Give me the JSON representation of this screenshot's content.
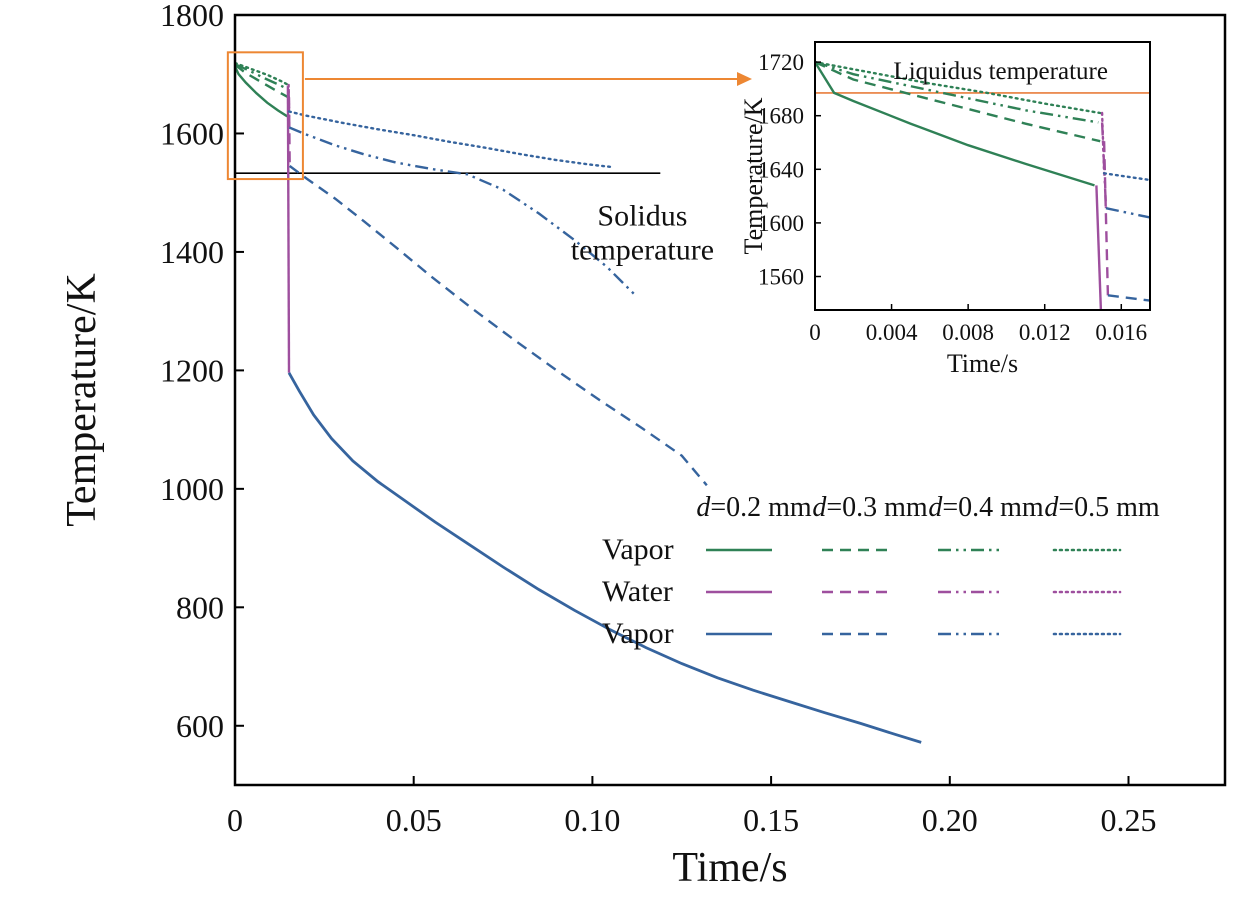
{
  "colors": {
    "green": "#2f8156",
    "purple": "#9e4f9e",
    "blue": "#36649e",
    "orange": "#ed8733",
    "liquidus": "#e87d3c",
    "axis": "#000000"
  },
  "legend": {
    "columns": [
      "d=0.2 mm",
      "d=0.3 mm",
      "d=0.4 mm",
      "d=0.5 mm"
    ],
    "rows": [
      {
        "label": "Vapor",
        "color": "green"
      },
      {
        "label": "Water",
        "color": "purple"
      },
      {
        "label": "Vapor",
        "color": "blue"
      }
    ],
    "styles": [
      "solid",
      "dash",
      "dashdotdot",
      "dot"
    ]
  },
  "chart_data": [
    {
      "id": "main",
      "type": "line",
      "title": "",
      "xlabel": "Time/s",
      "ylabel": "Temperature/K",
      "xlim": [
        0,
        0.277
      ],
      "ylim": [
        500,
        1800
      ],
      "xticks": [
        "0",
        "0.05",
        "0.10",
        "0.15",
        "0.20",
        "0.25"
      ],
      "xtick_values": [
        0,
        0.05,
        0.1,
        0.15,
        0.2,
        0.25
      ],
      "yticks": [
        "600",
        "800",
        "1000",
        "1200",
        "1400",
        "1600",
        "1800"
      ],
      "ytick_values": [
        600,
        800,
        1000,
        1200,
        1400,
        1600,
        1800
      ],
      "reference_lines": [
        {
          "label": "Solidus temperature",
          "value": 1533,
          "x_range": [
            0,
            0.119
          ],
          "color": "#000000"
        }
      ],
      "annotations": [
        {
          "text": "Solidus",
          "x": 0.114,
          "y": 1462
        },
        {
          "text": "temperature",
          "x": 0.114,
          "y": 1405
        }
      ],
      "zoom_region": {
        "x_range": [
          -0.002,
          0.019
        ],
        "y_range": [
          1523,
          1737
        ],
        "arrow_y": 1692
      },
      "series": [
        {
          "name": "vapor-initial-d0.2",
          "color": "green",
          "dash": "solid",
          "points": [
            [
              0,
              1713
            ],
            [
              0.001,
              1700
            ],
            [
              0.003,
              1686
            ],
            [
              0.006,
              1668
            ],
            [
              0.009,
              1652
            ],
            [
              0.012,
              1639
            ],
            [
              0.0146,
              1629
            ]
          ]
        },
        {
          "name": "vapor-initial-d0.3",
          "color": "green",
          "dash": "dash",
          "points": [
            [
              0,
              1716
            ],
            [
              0.003,
              1702
            ],
            [
              0.007,
              1688
            ],
            [
              0.011,
              1674
            ],
            [
              0.0149,
              1661
            ]
          ]
        },
        {
          "name": "vapor-initial-d0.4",
          "color": "green",
          "dash": "dashdotdot",
          "points": [
            [
              0,
              1717
            ],
            [
              0.004,
              1706
            ],
            [
              0.008,
              1694
            ],
            [
              0.012,
              1683
            ],
            [
              0.0148,
              1675
            ]
          ]
        },
        {
          "name": "vapor-initial-d0.5",
          "color": "green",
          "dash": "dot",
          "points": [
            [
              0,
              1719
            ],
            [
              0.004,
              1710
            ],
            [
              0.009,
              1699
            ],
            [
              0.013,
              1688
            ],
            [
              0.0149,
              1682
            ]
          ]
        },
        {
          "name": "water-d0.2",
          "color": "purple",
          "dash": "solid",
          "points": [
            [
              0.0148,
              1680
            ],
            [
              0.0151,
              1196
            ]
          ]
        },
        {
          "name": "water-d0.3",
          "color": "purple",
          "dash": "dash",
          "points": [
            [
              0.0151,
              1661
            ],
            [
              0.0153,
              1545
            ]
          ]
        },
        {
          "name": "water-d0.4",
          "color": "purple",
          "dash": "dashdotdot",
          "points": [
            [
              0.015,
              1675
            ],
            [
              0.0152,
              1610
            ]
          ]
        },
        {
          "name": "water-d0.5",
          "color": "purple",
          "dash": "dot",
          "points": [
            [
              0.015,
              1682
            ],
            [
              0.0151,
              1637
            ]
          ]
        },
        {
          "name": "vapor-d0.2",
          "color": "blue",
          "dash": "solid",
          "width": 2.8,
          "points": [
            [
              0.0151,
              1196
            ],
            [
              0.018,
              1165
            ],
            [
              0.022,
              1125
            ],
            [
              0.027,
              1085
            ],
            [
              0.033,
              1047
            ],
            [
              0.04,
              1012
            ],
            [
              0.048,
              978
            ],
            [
              0.056,
              944
            ],
            [
              0.065,
              908
            ],
            [
              0.075,
              868
            ],
            [
              0.085,
              830
            ],
            [
              0.095,
              795
            ],
            [
              0.105,
              762
            ],
            [
              0.115,
              732
            ],
            [
              0.125,
              705
            ],
            [
              0.135,
              681
            ],
            [
              0.145,
              660
            ],
            [
              0.155,
              641
            ],
            [
              0.165,
              622
            ],
            [
              0.175,
              604
            ],
            [
              0.185,
              585
            ],
            [
              0.192,
              572
            ]
          ]
        },
        {
          "name": "vapor-d0.3",
          "color": "blue",
          "dash": "dash",
          "points": [
            [
              0.0153,
              1545
            ],
            [
              0.02,
              1524
            ],
            [
              0.028,
              1490
            ],
            [
              0.036,
              1452
            ],
            [
              0.045,
              1408
            ],
            [
              0.055,
              1358
            ],
            [
              0.066,
              1306
            ],
            [
              0.078,
              1252
            ],
            [
              0.09,
              1200
            ],
            [
              0.102,
              1150
            ],
            [
              0.114,
              1102
            ],
            [
              0.125,
              1056
            ],
            [
              0.132,
              1006
            ]
          ]
        },
        {
          "name": "vapor-d0.4",
          "color": "blue",
          "dash": "dashdotdot",
          "points": [
            [
              0.0152,
              1610
            ],
            [
              0.02,
              1598
            ],
            [
              0.028,
              1580
            ],
            [
              0.036,
              1565
            ],
            [
              0.045,
              1551
            ],
            [
              0.055,
              1540
            ],
            [
              0.065,
              1531
            ],
            [
              0.075,
              1505
            ],
            [
              0.085,
              1465
            ],
            [
              0.095,
              1420
            ],
            [
              0.104,
              1375
            ],
            [
              0.112,
              1327
            ]
          ]
        },
        {
          "name": "vapor-d0.5",
          "color": "blue",
          "dash": "dot",
          "points": [
            [
              0.0151,
              1637
            ],
            [
              0.02,
              1630
            ],
            [
              0.03,
              1618
            ],
            [
              0.04,
              1607
            ],
            [
              0.05,
              1597
            ],
            [
              0.06,
              1586
            ],
            [
              0.07,
              1576
            ],
            [
              0.08,
              1565
            ],
            [
              0.09,
              1555
            ],
            [
              0.1,
              1547
            ],
            [
              0.106,
              1543
            ]
          ]
        }
      ]
    },
    {
      "id": "inset",
      "type": "line",
      "title": "",
      "xlabel": "Time/s",
      "ylabel": "Temperature/K",
      "xlim": [
        0,
        0.0175
      ],
      "ylim": [
        1535,
        1735
      ],
      "xticks": [
        "0",
        "0.004",
        "0.008",
        "0.012",
        "0.016"
      ],
      "xtick_values": [
        0,
        0.004,
        0.008,
        0.012,
        0.016
      ],
      "yticks": [
        "1560",
        "1600",
        "1640",
        "1680",
        "1720"
      ],
      "ytick_values": [
        1560,
        1600,
        1640,
        1680,
        1720
      ],
      "reference_lines": [
        {
          "label": "Liquidus temperature",
          "value": 1697,
          "x_range": [
            0,
            0.0175
          ],
          "color": "#e87d3c"
        }
      ],
      "annotations": [
        {
          "text": "Liquidus temperature",
          "x": 0.0097,
          "y": 1714
        }
      ],
      "series": [
        {
          "name": "vapor-initial-d0.2",
          "color": "green",
          "dash": "solid",
          "points": [
            [
              0,
              1720
            ],
            [
              0.001,
              1697
            ],
            [
              0.002,
              1691
            ],
            [
              0.005,
              1674
            ],
            [
              0.008,
              1658
            ],
            [
              0.011,
              1644
            ],
            [
              0.0146,
              1628
            ]
          ]
        },
        {
          "name": "vapor-initial-d0.3",
          "color": "green",
          "dash": "dash",
          "points": [
            [
              0,
              1720
            ],
            [
              0.002,
              1707
            ],
            [
              0.005,
              1696
            ],
            [
              0.008,
              1685
            ],
            [
              0.011,
              1674
            ],
            [
              0.0149,
              1661
            ]
          ]
        },
        {
          "name": "vapor-initial-d0.4",
          "color": "green",
          "dash": "dashdotdot",
          "points": [
            [
              0,
              1720
            ],
            [
              0.002,
              1711
            ],
            [
              0.005,
              1702
            ],
            [
              0.008,
              1693
            ],
            [
              0.011,
              1684
            ],
            [
              0.0148,
              1675
            ]
          ]
        },
        {
          "name": "vapor-initial-d0.5",
          "color": "green",
          "dash": "dot",
          "points": [
            [
              0,
              1720
            ],
            [
              0.003,
              1712
            ],
            [
              0.006,
              1704
            ],
            [
              0.009,
              1697
            ],
            [
              0.012,
              1689
            ],
            [
              0.0149,
              1682
            ]
          ]
        },
        {
          "name": "water-d0.2",
          "color": "purple",
          "dash": "solid",
          "points": [
            [
              0.0147,
              1628
            ],
            [
              0.015,
              1510
            ]
          ]
        },
        {
          "name": "water-d0.3",
          "color": "purple",
          "dash": "dash",
          "points": [
            [
              0.0151,
              1661
            ],
            [
              0.0153,
              1546
            ]
          ]
        },
        {
          "name": "water-d0.4",
          "color": "purple",
          "dash": "dashdotdot",
          "points": [
            [
              0.015,
              1675
            ],
            [
              0.0152,
              1611
            ]
          ]
        },
        {
          "name": "water-d0.5",
          "color": "purple",
          "dash": "dot",
          "points": [
            [
              0.015,
              1682
            ],
            [
              0.0151,
              1637
            ]
          ]
        },
        {
          "name": "vapor-d0.3",
          "color": "blue",
          "dash": "dash",
          "points": [
            [
              0.0153,
              1546
            ],
            [
              0.0175,
              1542
            ]
          ]
        },
        {
          "name": "vapor-d0.4",
          "color": "blue",
          "dash": "dashdotdot",
          "points": [
            [
              0.0152,
              1611
            ],
            [
              0.0175,
              1604
            ]
          ]
        },
        {
          "name": "vapor-d0.5",
          "color": "blue",
          "dash": "dot",
          "points": [
            [
              0.0151,
              1637
            ],
            [
              0.0175,
              1632
            ]
          ]
        }
      ]
    }
  ]
}
